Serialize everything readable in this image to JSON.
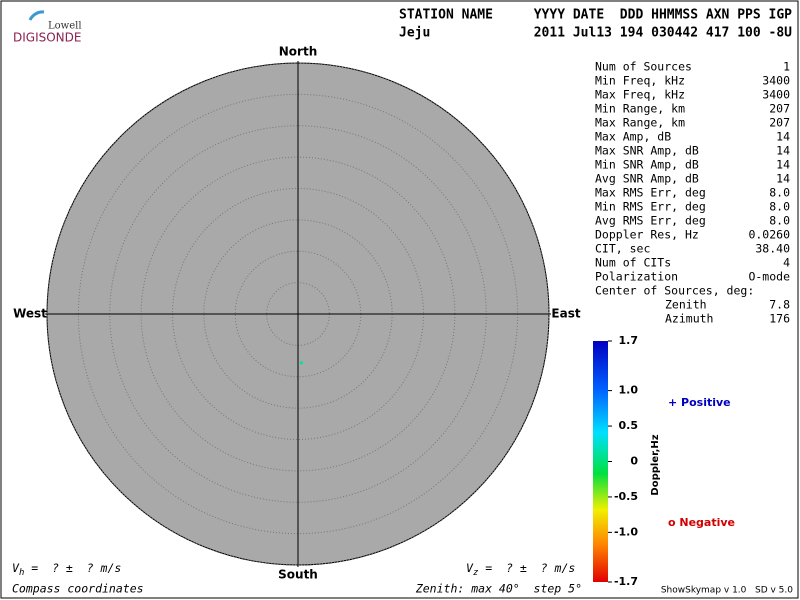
{
  "header": {
    "logo_top": "Lowell",
    "logo_bottom": "DIGISONDE",
    "station_label": "STATION NAME",
    "station": "Jeju",
    "fields_label": "YYYY DATE  DDD HHMMSS AXN PPS IGP",
    "fields": "2011 Jul13 194 030442 417 100 -8U"
  },
  "stats": [
    {
      "label": "Num of Sources",
      "value": "1"
    },
    {
      "label": "Min Freq, kHz",
      "value": "3400"
    },
    {
      "label": "Max Freq, kHz",
      "value": "3400"
    },
    {
      "label": "Min Range, km",
      "value": "207"
    },
    {
      "label": "Max Range, km",
      "value": "207"
    },
    {
      "label": "Max Amp, dB",
      "value": "14"
    },
    {
      "label": "Max SNR Amp, dB",
      "value": "14"
    },
    {
      "label": "Min SNR Amp, dB",
      "value": "14"
    },
    {
      "label": "Avg SNR Amp, dB",
      "value": "14"
    },
    {
      "label": "Max RMS Err, deg",
      "value": "8.0"
    },
    {
      "label": "Min RMS Err, deg",
      "value": "8.0"
    },
    {
      "label": "Avg RMS Err, deg",
      "value": "8.0"
    },
    {
      "label": "Doppler Res, Hz",
      "value": "0.0260"
    },
    {
      "label": "CIT, sec",
      "value": "38.40"
    },
    {
      "label": "Num of CITs",
      "value": "4"
    },
    {
      "label": "Polarization",
      "value": "O-mode"
    },
    {
      "label": "Center of Sources, deg:",
      "value": ""
    }
  ],
  "center": [
    {
      "label": "Zenith",
      "value": "7.8"
    },
    {
      "label": "Azimuth",
      "value": "176"
    }
  ],
  "chart_data": {
    "type": "polar",
    "directions": {
      "north": "North",
      "south": "South",
      "west": "West",
      "east": "East"
    },
    "rlim": [
      0,
      40
    ],
    "rticks": [
      5,
      10,
      15,
      20,
      25,
      30,
      35,
      40
    ],
    "points": {
      "zenith": [
        7.8
      ],
      "azimuth": [
        176
      ],
      "color": "#00e0a0"
    },
    "colorbar": {
      "label": "Doppler,Hz",
      "lim": [
        -1.7,
        1.7
      ],
      "ticks": [
        1.7,
        {
          "value": 1,
          "label": "1.0"
        },
        0.5,
        0,
        -0.5,
        {
          "value": -1,
          "label": "-1.0"
        },
        -1.7
      ]
    },
    "legend": {
      "positive": "+ Positive",
      "negative": "o Negative"
    }
  },
  "footer": {
    "vh_symbol": "V",
    "vh_sub": "h",
    "vh_rest": " =  ? ±  ? m/s",
    "vz_symbol": "V",
    "vz_sub": "z",
    "vz_rest": " =  ? ±  ? m/s",
    "coords": "Compass coordinates",
    "zenith_note": "Zenith: max 40°  step 5°",
    "version": "ShowSkymap v 1.0   SD v 5.0"
  }
}
